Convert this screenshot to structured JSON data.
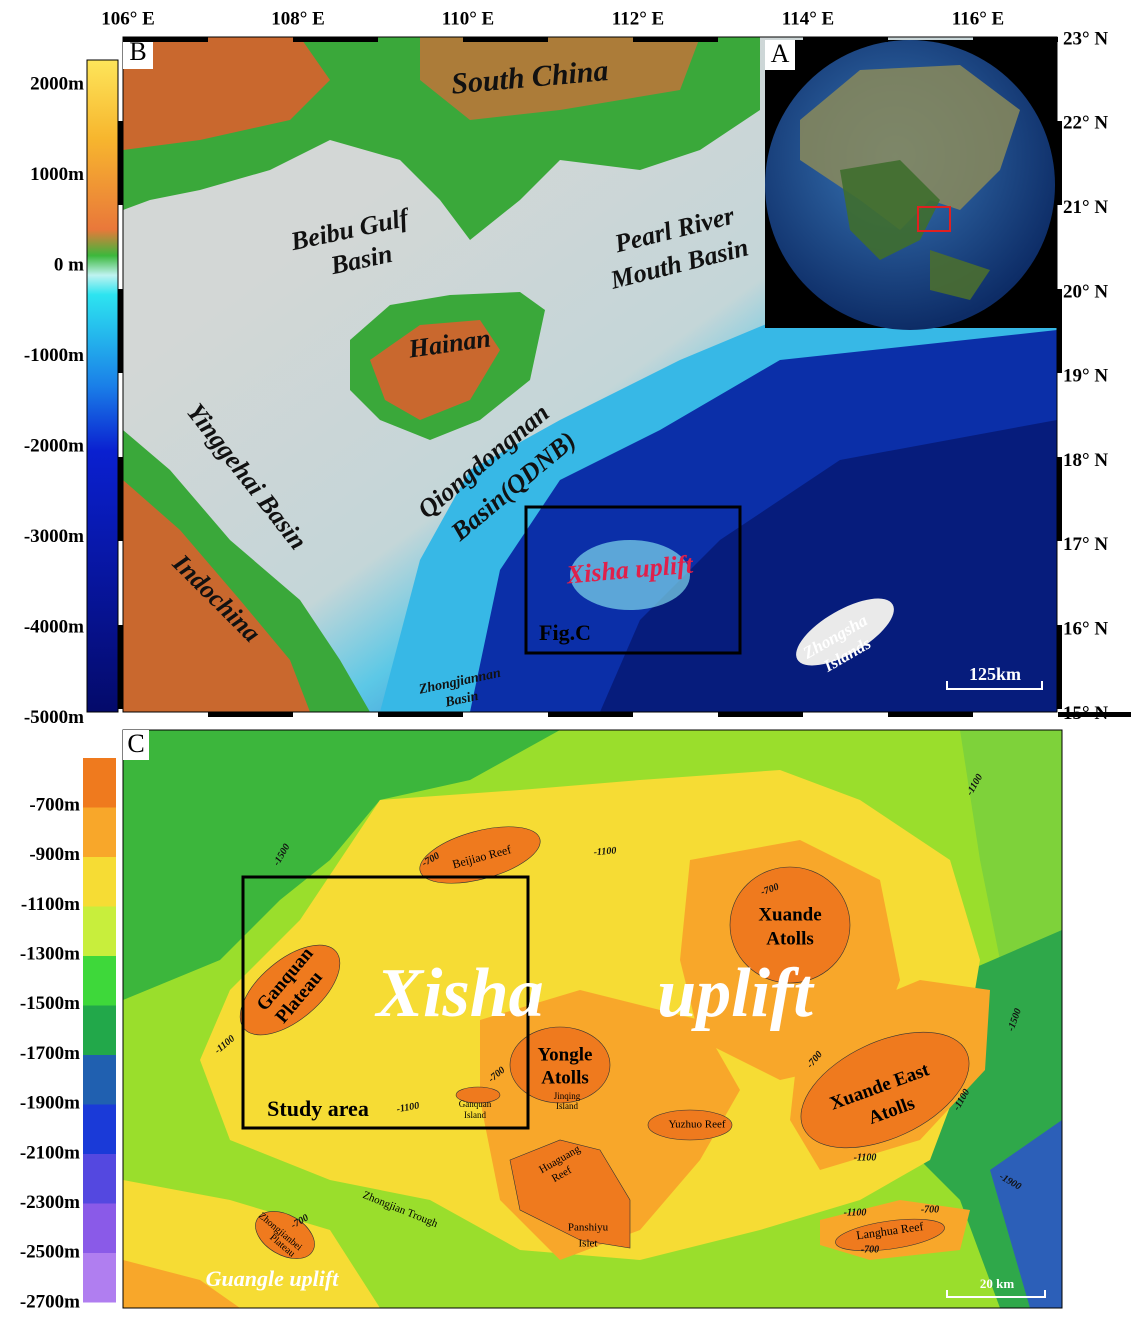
{
  "panel_b": {
    "letter": "B",
    "longitude_labels": [
      "106° E",
      "108° E",
      "110° E",
      "112° E",
      "114° E",
      "116° E"
    ],
    "latitude_labels": [
      "23° N",
      "22° N",
      "21° N",
      "20° N",
      "19° N",
      "18° N",
      "17° N",
      "16° N",
      "15° N"
    ],
    "colorbar_labels": [
      "2000m",
      "1000m",
      "0 m",
      "-1000m",
      "-2000m",
      "-3000m",
      "-4000m",
      "-5000m"
    ],
    "place_names": {
      "south_china": [
        "South China"
      ],
      "beibu_gulf_basin": [
        "Beibu Gulf",
        "Basin"
      ],
      "pearl_river_mouth_basin": [
        "Pearl River",
        "Mouth Basin"
      ],
      "hainan": [
        "Hainan"
      ],
      "yinggehai_basin": [
        "Yinggehai Basin"
      ],
      "qiongdongnan_basin": [
        "Qiongdongnan",
        "Basin(QDNB)"
      ],
      "indochina": [
        "Indochina"
      ],
      "xisha_uplift": [
        "Xisha uplift"
      ],
      "fig_c": [
        "Fig.C"
      ],
      "zhongjiannan_basin": [
        "Zhongjiannan",
        "Basin"
      ],
      "zhongsha_islands": [
        "Zhongsha",
        "Islands"
      ]
    },
    "scale_bar": "125km"
  },
  "panel_a": {
    "letter": "A"
  },
  "panel_c": {
    "letter": "C",
    "colorbar_labels": [
      "-700m",
      "-900m",
      "-1100m",
      "-1300m",
      "-1500m",
      "-1700m",
      "-1900m",
      "-2100m",
      "-2300m",
      "-2500m",
      "-2700m"
    ],
    "contour_labels": [
      "-1500",
      "-1100",
      "-1100",
      "-700",
      "-700",
      "-1100",
      "-700",
      "-1100",
      "-700",
      "-1100",
      "-1500",
      "-1100",
      "-1100",
      "-700",
      "-700",
      "-700",
      "-1900"
    ],
    "place_names": {
      "beijiao_reef": [
        "Beijiao Reef"
      ],
      "xuande_atolls": [
        "Xuande",
        "Atolls"
      ],
      "ganquan_plateau": [
        "Ganquan",
        "Plateau"
      ],
      "xisha_uplift": [
        "Xisha",
        "uplift"
      ],
      "yongle_atolls": [
        "Yongle",
        "Atolls"
      ],
      "xuande_east_atolls": [
        "Xuande East",
        "Atolls"
      ],
      "study_area": [
        "Study area"
      ],
      "ganquan_island": [
        "Ganquan",
        "Island"
      ],
      "jinqing_island": [
        "Jinqing",
        "Island"
      ],
      "yuzhuo_reef": [
        "Yuzhuo Reef"
      ],
      "huaguang_reef": [
        "Huaguang",
        "Reef"
      ],
      "panshiyu_islet": [
        "Panshiyu",
        "Islet"
      ],
      "zhongjian_trough": [
        "Zhongjian Trough"
      ],
      "zhongjianbei_plateau": [
        "Zhongjianbei",
        "Plateau"
      ],
      "langhua_reef": [
        "Langhua Reef"
      ],
      "guangle_uplift": [
        "Guangle    uplift"
      ]
    },
    "scale_bar": "20 km"
  }
}
